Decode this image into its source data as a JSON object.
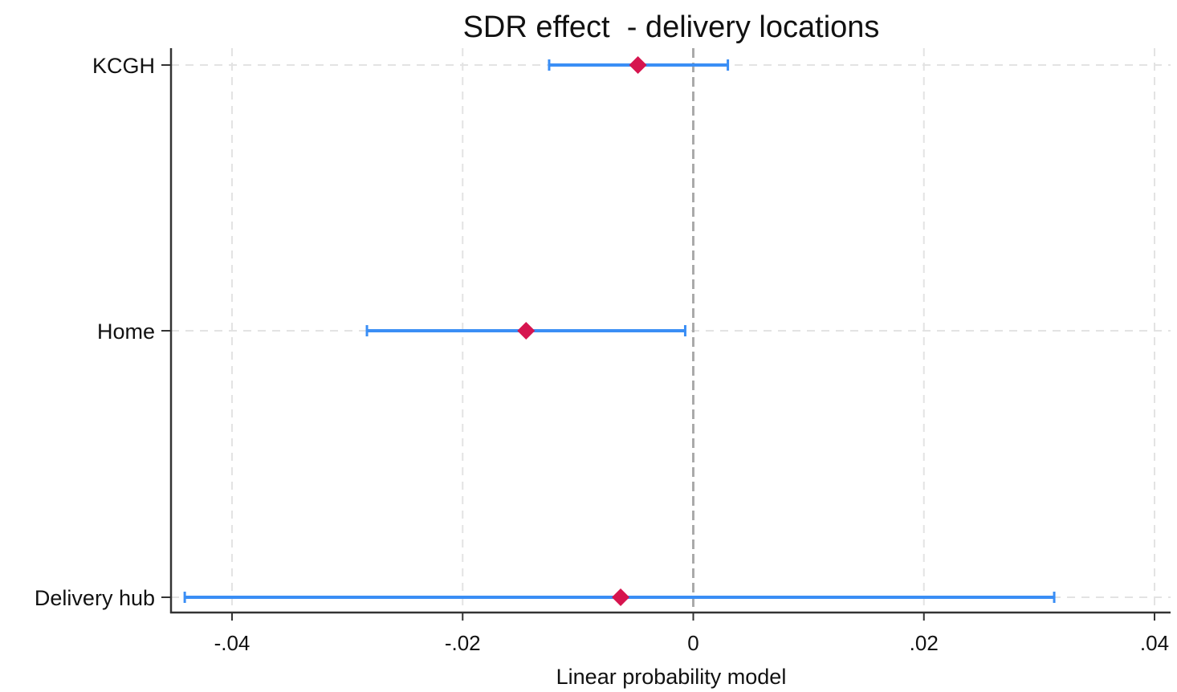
{
  "chart_data": {
    "type": "scatter",
    "title": "SDR effect  - delivery locations",
    "xlabel": "Linear probability model",
    "ylabel": "",
    "xlim": [
      -0.045,
      0.041
    ],
    "x_ticks": [
      -0.04,
      -0.02,
      0,
      0.02,
      0.04
    ],
    "x_tick_labels": [
      "-.04",
      "-.02",
      "0",
      ".02",
      ".04"
    ],
    "categories": [
      "KCGH",
      "Home",
      "Delivery hub"
    ],
    "points": [
      {
        "category": "KCGH",
        "estimate": -0.0048,
        "ci_low": -0.0125,
        "ci_high": 0.003
      },
      {
        "category": "Home",
        "estimate": -0.0145,
        "ci_low": -0.0283,
        "ci_high": -0.0007
      },
      {
        "category": "Delivery hub",
        "estimate": -0.0063,
        "ci_low": -0.0441,
        "ci_high": 0.0313
      }
    ],
    "reference_line_x": 0,
    "grid": true,
    "colors": {
      "point": "#d6154f",
      "ci": "#3a8ef5",
      "grid": "#e3e3e3",
      "reference": "#aaaaaa",
      "axis": "#333333"
    }
  }
}
